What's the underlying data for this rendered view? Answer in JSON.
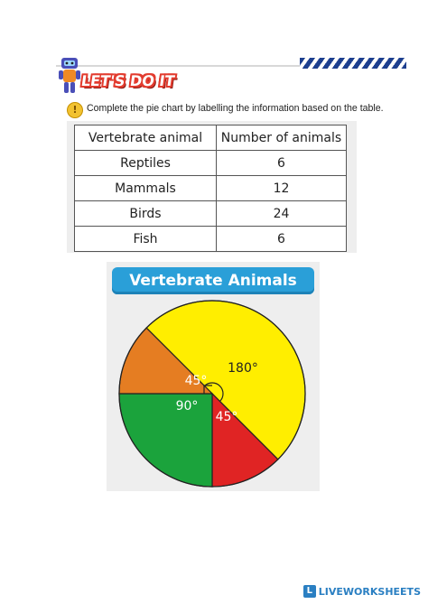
{
  "header": {
    "banner_title": "LET'S DO IT",
    "instruction_icon": "!",
    "instruction": "Complete the pie chart by labelling the information based on the table."
  },
  "table": {
    "headers": [
      "Vertebrate animal",
      "Number of animals"
    ],
    "rows": [
      {
        "animal": "Reptiles",
        "count": "6"
      },
      {
        "animal": "Mammals",
        "count": "12"
      },
      {
        "animal": "Birds",
        "count": "24"
      },
      {
        "animal": "Fish",
        "count": "6"
      }
    ]
  },
  "chart_data": {
    "type": "pie",
    "title": "Vertebrate Animals",
    "slices": [
      {
        "label": "180°",
        "value": 180,
        "color": "#ffee00"
      },
      {
        "label": "45°",
        "value": 45,
        "color": "#e02424"
      },
      {
        "label": "90°",
        "value": 90,
        "color": "#1ba33c"
      },
      {
        "label": "45°",
        "value": 45,
        "color": "#e57d22"
      }
    ],
    "legend": "none"
  },
  "footer": {
    "logo": "L",
    "text": "LIVEWORKSHEETS"
  },
  "colors": {
    "accent": "#2a9fd8",
    "banner": "#e23b2e",
    "brand": "#2a7fc2"
  }
}
